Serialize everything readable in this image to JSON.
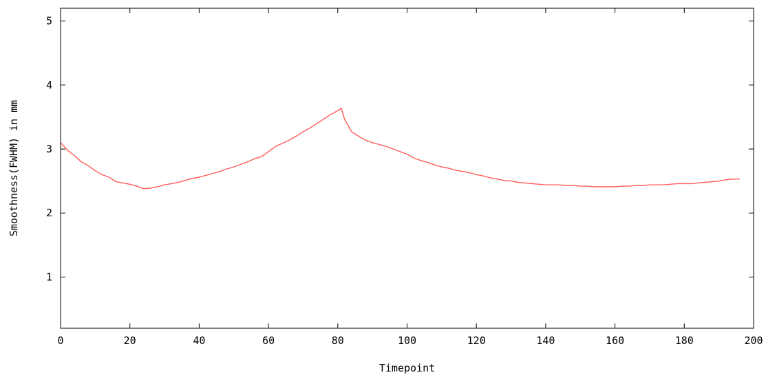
{
  "chart_data": {
    "type": "line",
    "title": "",
    "xlabel": "Timepoint",
    "ylabel": "Smoothness(FWHM) in mm",
    "xlim": [
      0,
      200
    ],
    "ylim": [
      0.2,
      5.2
    ],
    "xticks": [
      0,
      20,
      40,
      60,
      80,
      100,
      120,
      140,
      160,
      180,
      200
    ],
    "yticks": [
      1,
      2,
      3,
      4,
      5
    ],
    "grid": false,
    "legend": "none",
    "line_color": "#ff5a5a",
    "series": [
      {
        "x": [
          0,
          2,
          4,
          6,
          8,
          10,
          12,
          14,
          16,
          18,
          20,
          22,
          24,
          26,
          28,
          30,
          32,
          34,
          36,
          38,
          40,
          42,
          44,
          46,
          48,
          50,
          52,
          54,
          56,
          58,
          60,
          62,
          64,
          66,
          68,
          70,
          72,
          74,
          76,
          78,
          80,
          81,
          82,
          84,
          86,
          88,
          90,
          92,
          94,
          96,
          98,
          100,
          102,
          104,
          106,
          108,
          110,
          112,
          114,
          116,
          118,
          120,
          122,
          124,
          126,
          128,
          130,
          132,
          134,
          136,
          138,
          140,
          142,
          144,
          146,
          148,
          150,
          152,
          154,
          156,
          158,
          160,
          162,
          164,
          166,
          168,
          170,
          172,
          174,
          176,
          178,
          180,
          182,
          184,
          186,
          188,
          190,
          192,
          194,
          196
        ],
        "y": [
          3.1,
          2.98,
          2.9,
          2.8,
          2.74,
          2.66,
          2.6,
          2.56,
          2.49,
          2.47,
          2.45,
          2.42,
          2.38,
          2.39,
          2.41,
          2.44,
          2.46,
          2.48,
          2.51,
          2.54,
          2.56,
          2.59,
          2.62,
          2.65,
          2.69,
          2.72,
          2.76,
          2.8,
          2.85,
          2.88,
          2.96,
          3.04,
          3.09,
          3.14,
          3.2,
          3.27,
          3.33,
          3.4,
          3.47,
          3.54,
          3.6,
          3.64,
          3.46,
          3.27,
          3.2,
          3.14,
          3.1,
          3.07,
          3.04,
          3.0,
          2.96,
          2.92,
          2.86,
          2.82,
          2.79,
          2.75,
          2.72,
          2.7,
          2.67,
          2.65,
          2.63,
          2.6,
          2.58,
          2.55,
          2.53,
          2.51,
          2.5,
          2.48,
          2.47,
          2.46,
          2.45,
          2.44,
          2.44,
          2.44,
          2.43,
          2.43,
          2.42,
          2.42,
          2.41,
          2.41,
          2.41,
          2.41,
          2.42,
          2.42,
          2.43,
          2.43,
          2.44,
          2.44,
          2.44,
          2.45,
          2.46,
          2.46,
          2.46,
          2.47,
          2.48,
          2.49,
          2.5,
          2.52,
          2.53,
          2.53
        ]
      }
    ]
  }
}
